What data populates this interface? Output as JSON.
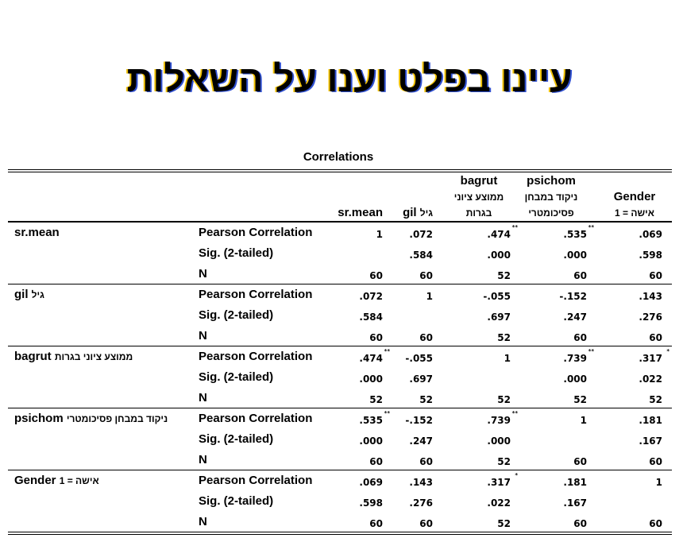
{
  "title": "עיינו בפלט וענו על השאלות",
  "table": {
    "caption": "Correlations",
    "columns": [
      {
        "en": "sr.mean",
        "he": ""
      },
      {
        "en": "gil",
        "he": "גיל"
      },
      {
        "en": "bagrut",
        "he": "ממוצע ציוני בגרות"
      },
      {
        "en": "psichom",
        "he": "ניקוד במבחן פסיכומטרי"
      },
      {
        "en": "Gender",
        "he": "1 = אישה"
      }
    ],
    "stat_labels": [
      "Pearson Correlation",
      "Sig. (2-tailed)",
      "N"
    ],
    "rows": [
      {
        "en": "sr.mean",
        "he": "",
        "r": [
          [
            "1",
            ""
          ],
          [
            ".072",
            ""
          ],
          [
            ".474",
            "**"
          ],
          [
            ".535",
            "**"
          ],
          [
            ".069",
            ""
          ]
        ],
        "sig": [
          [
            "",
            ""
          ],
          [
            ".584",
            ""
          ],
          [
            ".000",
            ""
          ],
          [
            ".000",
            ""
          ],
          [
            ".598",
            ""
          ]
        ],
        "n": [
          "60",
          "60",
          "52",
          "60",
          "60"
        ]
      },
      {
        "en": "gil",
        "he": "גיל",
        "r": [
          [
            ".072",
            ""
          ],
          [
            "1",
            ""
          ],
          [
            "-.055",
            ""
          ],
          [
            "-.152",
            ""
          ],
          [
            ".143",
            ""
          ]
        ],
        "sig": [
          [
            ".584",
            ""
          ],
          [
            "",
            ""
          ],
          [
            ".697",
            ""
          ],
          [
            ".247",
            ""
          ],
          [
            ".276",
            ""
          ]
        ],
        "n": [
          "60",
          "60",
          "52",
          "60",
          "60"
        ]
      },
      {
        "en": "bagrut",
        "he": "ממוצע ציוני בגרות",
        "r": [
          [
            ".474",
            "**"
          ],
          [
            "-.055",
            ""
          ],
          [
            "1",
            ""
          ],
          [
            ".739",
            "**"
          ],
          [
            ".317",
            "*"
          ]
        ],
        "sig": [
          [
            ".000",
            ""
          ],
          [
            ".697",
            ""
          ],
          [
            "",
            ""
          ],
          [
            ".000",
            ""
          ],
          [
            ".022",
            ""
          ]
        ],
        "n": [
          "52",
          "52",
          "52",
          "52",
          "52"
        ]
      },
      {
        "en": "psichom",
        "he": "ניקוד במבחן פסיכומטרי",
        "r": [
          [
            ".535",
            "**"
          ],
          [
            "-.152",
            ""
          ],
          [
            ".739",
            "**"
          ],
          [
            "1",
            ""
          ],
          [
            ".181",
            ""
          ]
        ],
        "sig": [
          [
            ".000",
            ""
          ],
          [
            ".247",
            ""
          ],
          [
            ".000",
            ""
          ],
          [
            "",
            ""
          ],
          [
            ".167",
            ""
          ]
        ],
        "n": [
          "60",
          "60",
          "52",
          "60",
          "60"
        ]
      },
      {
        "en": "Gender",
        "he": "1 = אישה",
        "r": [
          [
            ".069",
            ""
          ],
          [
            ".143",
            ""
          ],
          [
            ".317",
            "*"
          ],
          [
            ".181",
            ""
          ],
          [
            "1",
            ""
          ]
        ],
        "sig": [
          [
            ".598",
            ""
          ],
          [
            ".276",
            ""
          ],
          [
            ".022",
            ""
          ],
          [
            ".167",
            ""
          ],
          [
            "",
            ""
          ]
        ],
        "n": [
          "60",
          "60",
          "52",
          "60",
          "60"
        ]
      }
    ]
  }
}
